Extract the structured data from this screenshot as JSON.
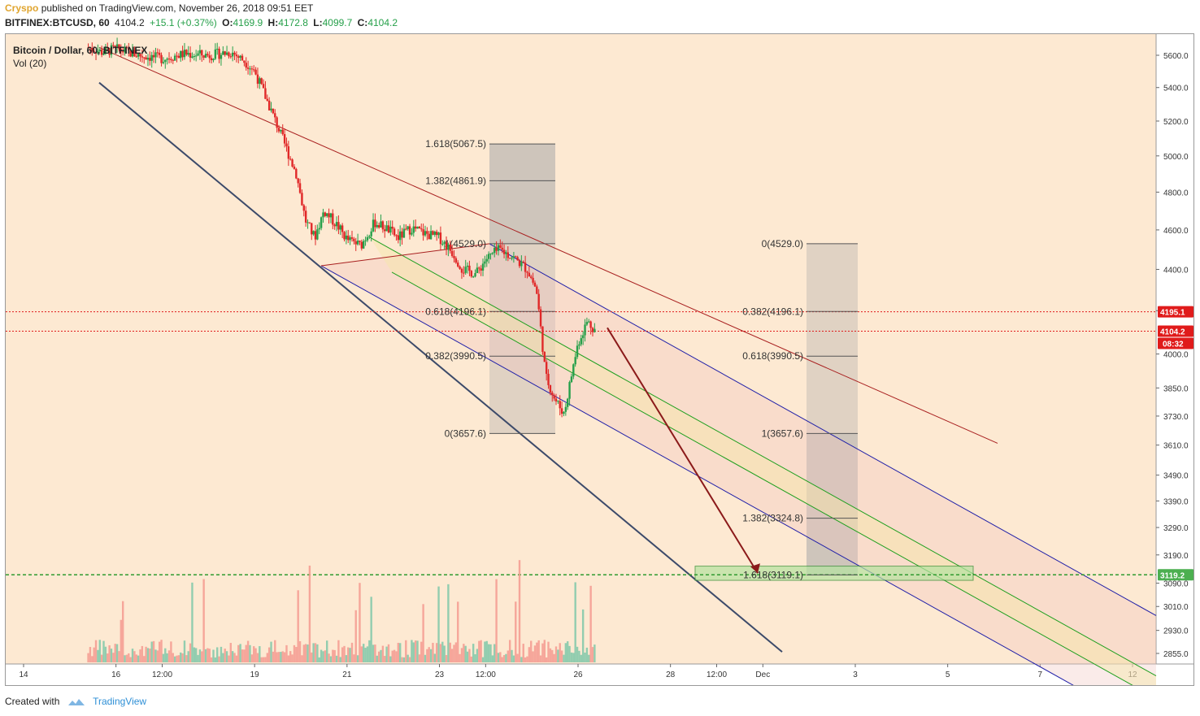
{
  "header": {
    "author": "Cryspo",
    "published": "published on TradingView.com, November 26, 2018 09:51 EET",
    "symbol": "BITFINEX:BTCUSD, 60",
    "last": "4104.2",
    "change": "+15.1 (+0.37%)",
    "o_label": "O:",
    "o": "4169.9",
    "h_label": "H:",
    "h": "4172.8",
    "l_label": "L:",
    "l": "4099.7",
    "c_label": "C:",
    "c": "4104.2"
  },
  "legend": {
    "title": "Bitcoin / Dollar, 60, BITFINEX",
    "volume": "Vol (20)"
  },
  "footer": {
    "created_with": "Created with",
    "brand": "TradingView"
  },
  "colors": {
    "background": "#fde9d2",
    "up": "#26a04a",
    "down": "#e02828",
    "price_tag": "#e01b1b",
    "target_tag": "#4caf50",
    "fib_box": "#a8a8a8",
    "channel_blue": "#1f1fa8",
    "channel_green": "#1f9f1f",
    "channel_red": "#a81f1f"
  },
  "chart_data": {
    "type": "candlestick",
    "title": "Bitcoin / Dollar, 60, BITFINEX",
    "ylabel": "",
    "y_scale": "log",
    "ylim": [
      2800,
      5700
    ],
    "y_ticks": [
      "5600.0",
      "5400.0",
      "5200.0",
      "5000.0",
      "4800.0",
      "4600.0",
      "4400.0",
      "4200.0",
      "4000.0",
      "3850.0",
      "3730.0",
      "3610.0",
      "3490.0",
      "3390.0",
      "3290.0",
      "3190.0",
      "3090.0",
      "3010.0",
      "2930.0",
      "2855.0"
    ],
    "x_ticks": [
      "14",
      "16",
      "12:00",
      "19",
      "21",
      "23",
      "12:00",
      "26",
      "28",
      "12:00",
      "Dec",
      "3",
      "5",
      "7",
      "12"
    ],
    "price_tags": [
      {
        "value": "4195.1",
        "label": "4195.1"
      },
      {
        "value": "4104.2",
        "label": "4104.2",
        "timer": "08:32"
      },
      {
        "value": "3119.2",
        "label": "3119.2"
      }
    ],
    "fib_left": [
      {
        "label": "1.618(5067.5)",
        "value": 5067.5
      },
      {
        "label": "1.382(4861.9)",
        "value": 4861.9
      },
      {
        "label": "1(4529.0)",
        "value": 4529.0
      },
      {
        "label": "0.618(4196.1)",
        "value": 4196.1
      },
      {
        "label": "0.382(3990.5)",
        "value": 3990.5
      },
      {
        "label": "0(3657.6)",
        "value": 3657.6
      }
    ],
    "fib_right": [
      {
        "label": "0(4529.0)",
        "value": 4529.0
      },
      {
        "label": "0.382(4196.1)",
        "value": 4196.1
      },
      {
        "label": "0.618(3990.5)",
        "value": 3990.5
      },
      {
        "label": "1(3657.6)",
        "value": 3657.6
      },
      {
        "label": "1.382(3324.8)",
        "value": 3324.8
      },
      {
        "label": "1.618(3119.1)",
        "value": 3119.1
      }
    ],
    "price_path": [
      [
        15.4,
        5650
      ],
      [
        15.7,
        5620
      ],
      [
        16.0,
        5640
      ],
      [
        16.5,
        5600
      ],
      [
        17.0,
        5580
      ],
      [
        17.5,
        5610
      ],
      [
        18.0,
        5600
      ],
      [
        18.5,
        5620
      ],
      [
        18.8,
        5560
      ],
      [
        19.0,
        5500
      ],
      [
        19.3,
        5300
      ],
      [
        19.6,
        5100
      ],
      [
        19.9,
        4900
      ],
      [
        20.1,
        4650
      ],
      [
        20.3,
        4560
      ],
      [
        20.5,
        4700
      ],
      [
        20.8,
        4620
      ],
      [
        21.0,
        4550
      ],
      [
        21.3,
        4520
      ],
      [
        21.6,
        4640
      ],
      [
        21.9,
        4600
      ],
      [
        22.1,
        4560
      ],
      [
        22.4,
        4610
      ],
      [
        22.7,
        4580
      ],
      [
        23.0,
        4560
      ],
      [
        23.3,
        4480
      ],
      [
        23.5,
        4400
      ],
      [
        23.8,
        4380
      ],
      [
        24.0,
        4450
      ],
      [
        24.3,
        4500
      ],
      [
        24.6,
        4460
      ],
      [
        24.9,
        4400
      ],
      [
        25.1,
        4300
      ],
      [
        25.3,
        3900
      ],
      [
        25.5,
        3800
      ],
      [
        25.7,
        3740
      ],
      [
        25.9,
        3950
      ],
      [
        26.0,
        4050
      ],
      [
        26.2,
        4150
      ],
      [
        26.4,
        4104
      ]
    ]
  }
}
